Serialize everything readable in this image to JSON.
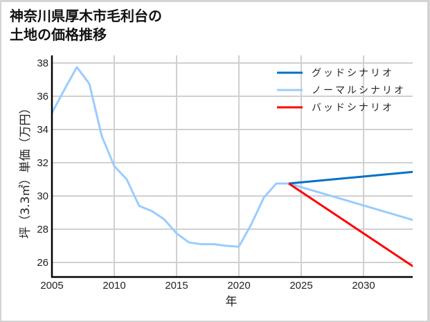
{
  "title": "神奈川県厚木市毛利台の\n土地の価格推移",
  "chart_data": {
    "type": "line",
    "title": "神奈川県厚木市毛利台の土地の価格推移",
    "xlabel": "年",
    "ylabel": "坪（3.3㎡）単価（万円）",
    "xlim": [
      2005,
      2034
    ],
    "ylim": [
      25.1,
      38.2
    ],
    "x_ticks": [
      2005,
      2010,
      2015,
      2020,
      2025,
      2030
    ],
    "y_ticks": [
      26,
      28,
      30,
      32,
      34,
      36,
      38
    ],
    "grid": true,
    "legend_position": "upper right",
    "series": [
      {
        "name": "グッドシナリオ",
        "color": "#0070c8",
        "x": [
          2024,
          2034
        ],
        "values": [
          30.75,
          31.45
        ]
      },
      {
        "name": "ノーマルシナリオ",
        "color": "#99ccff",
        "x": [
          2005,
          2006,
          2007,
          2008,
          2009,
          2010,
          2011,
          2012,
          2013,
          2014,
          2015,
          2016,
          2017,
          2018,
          2019,
          2020,
          2021,
          2022,
          2023,
          2024,
          2034
        ],
        "values": [
          35.0,
          36.4,
          37.75,
          36.75,
          33.6,
          31.8,
          31.0,
          29.4,
          29.1,
          28.6,
          27.75,
          27.2,
          27.1,
          27.1,
          27.0,
          26.95,
          28.3,
          29.9,
          30.75,
          30.75,
          28.55
        ]
      },
      {
        "name": "バッドシナリオ",
        "color": "#ff0000",
        "x": [
          2024,
          2034
        ],
        "values": [
          30.75,
          25.75
        ]
      }
    ]
  }
}
